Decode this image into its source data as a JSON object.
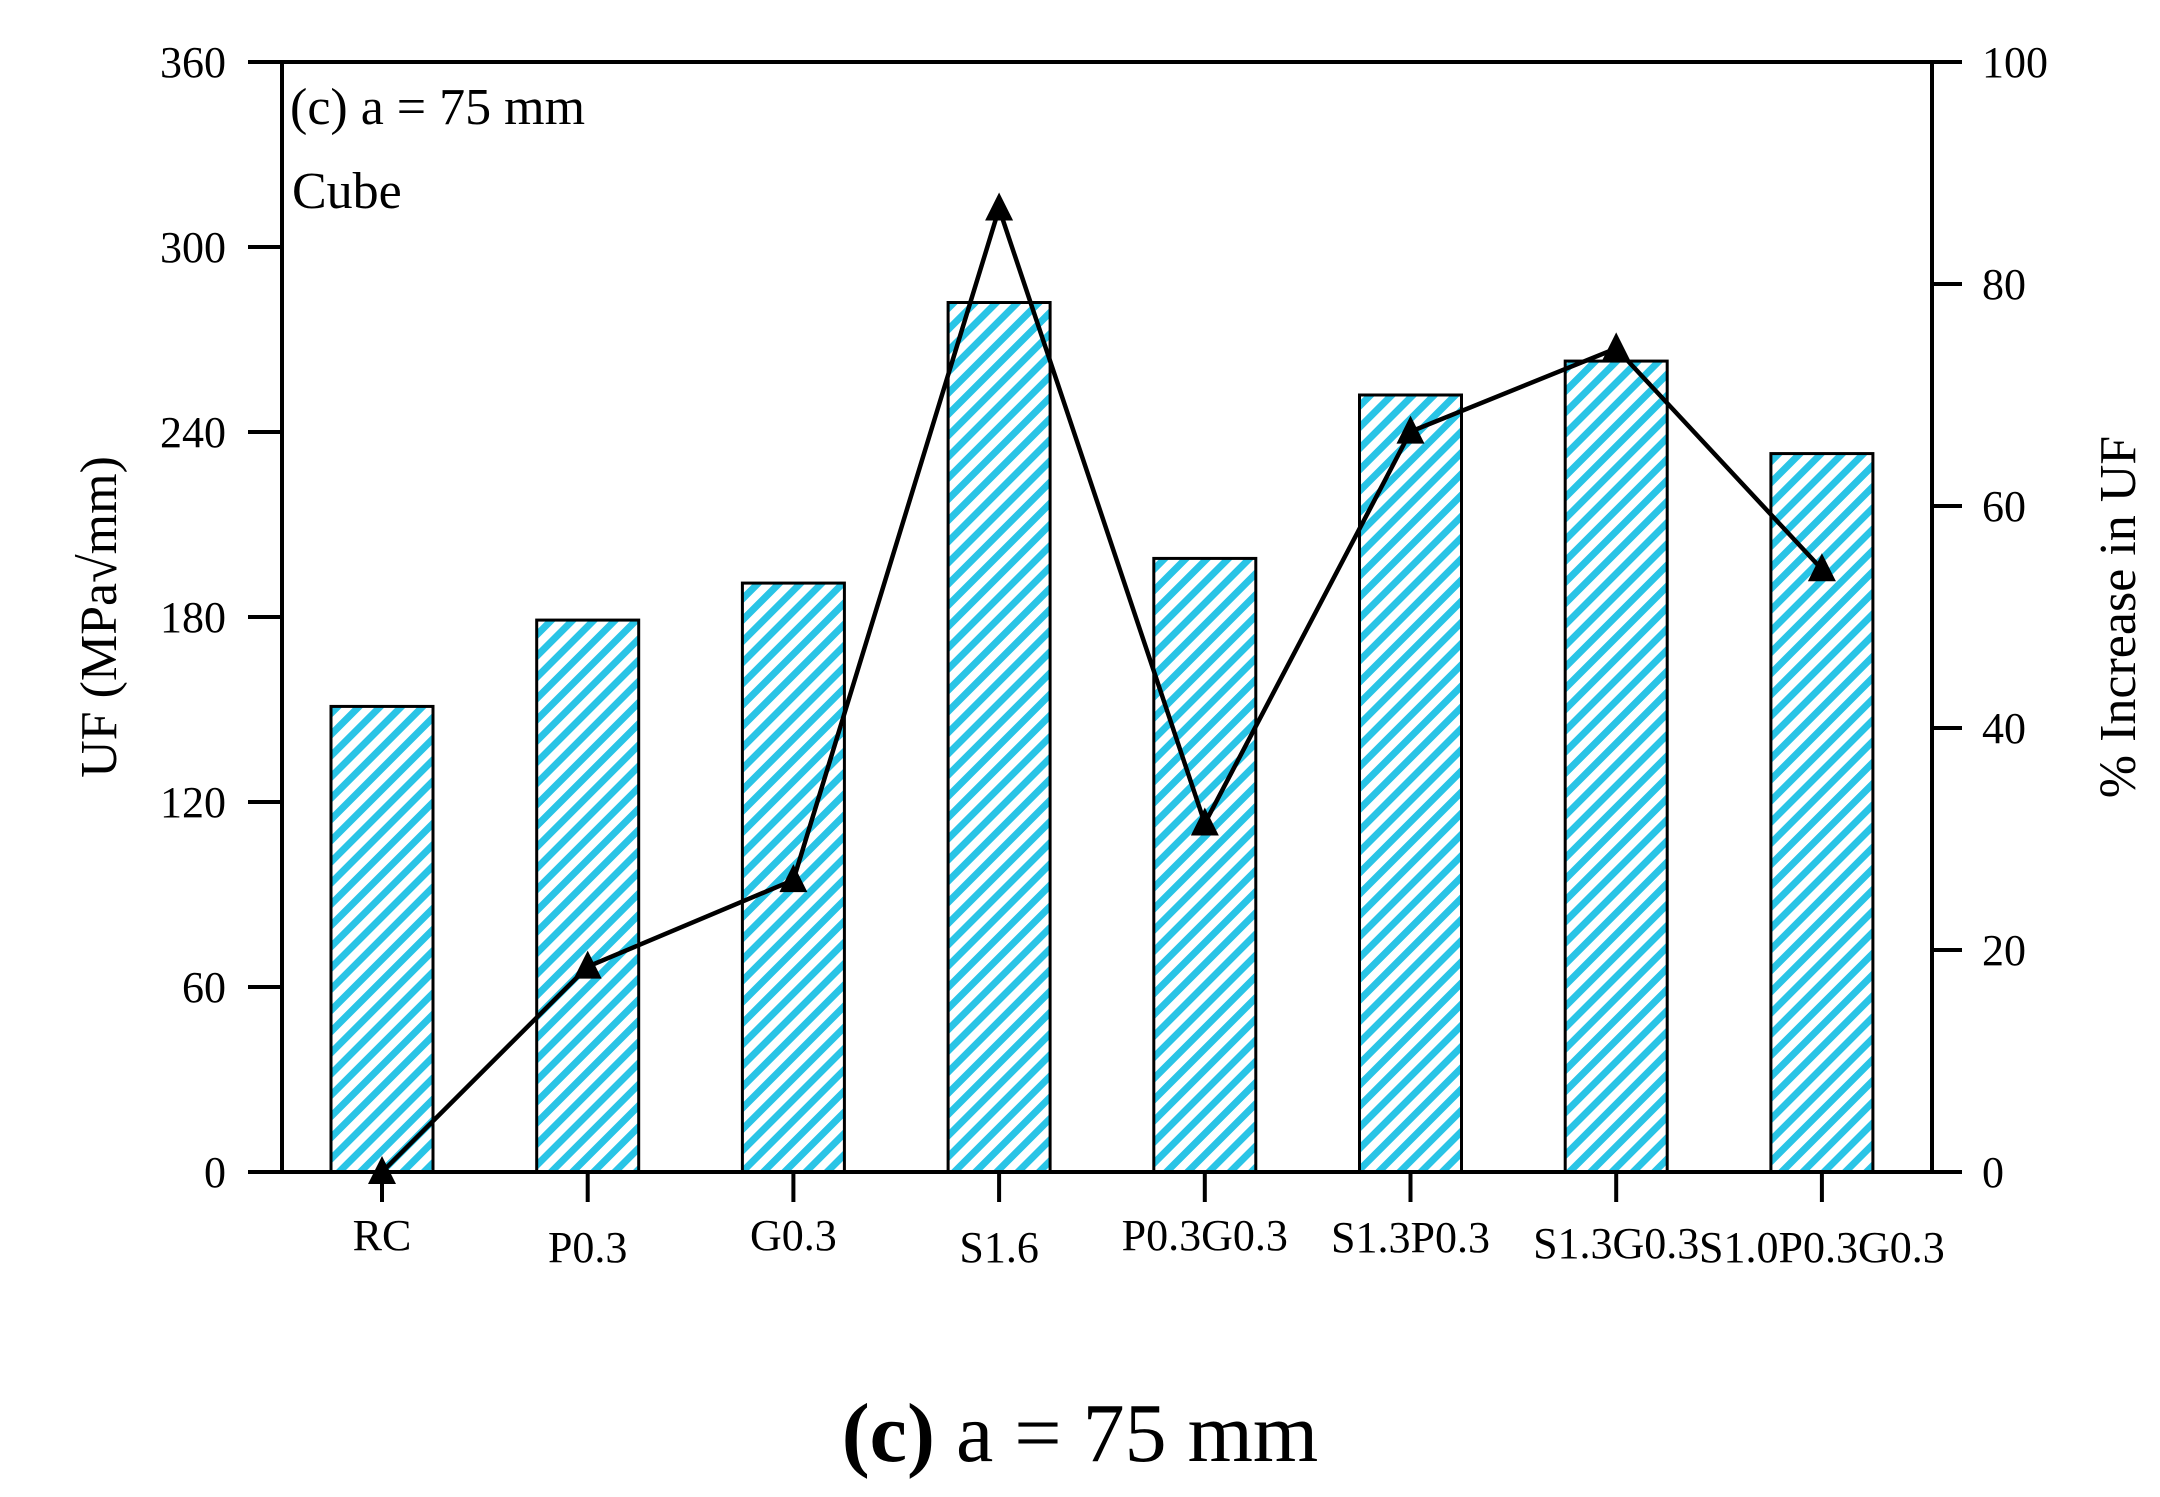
{
  "chart_data": {
    "type": "bar+line",
    "panel_label": "(c) a = 75 mm",
    "sub_label": "Cube",
    "categories": [
      "RC",
      "P0.3",
      "G0.3",
      "S1.6",
      "P0.3G0.3",
      "S1.3P0.3",
      "S1.3G0.3",
      "S1.0P0.3G0.3"
    ],
    "series": [
      {
        "name": "UF",
        "type": "bar",
        "axis": "left",
        "values": [
          151,
          179,
          191,
          282,
          199,
          252,
          263,
          233
        ],
        "color": "#29c4e6",
        "pattern": "diagonal-hatch"
      },
      {
        "name": "% Increase in UF",
        "type": "line",
        "axis": "right",
        "marker": "triangle",
        "values": [
          0,
          18.5,
          26.3,
          86.8,
          31.4,
          66.7,
          74.2,
          54.3
        ],
        "color": "#000000"
      }
    ],
    "ylabel": "UF (MPa√mm)",
    "y2label": "% Increase in UF",
    "ylim": [
      0,
      360
    ],
    "yticks": [
      "0",
      "60",
      "120",
      "180",
      "240",
      "300",
      "360"
    ],
    "y2lim": [
      0,
      100
    ],
    "y2ticks": [
      "0",
      "20",
      "40",
      "60",
      "80",
      "100"
    ],
    "grid": false
  },
  "caption": {
    "letter": "(c)",
    "text": " a = 75 mm"
  }
}
